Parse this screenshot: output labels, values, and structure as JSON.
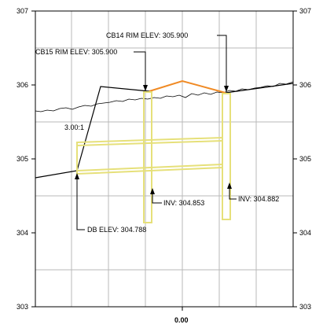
{
  "profile": {
    "y_axis_left": [
      "307",
      "306",
      "305",
      "304",
      "303"
    ],
    "y_axis_right": [
      "307",
      "306",
      "305",
      "304",
      "303"
    ],
    "x_station": "0.00",
    "labels": {
      "cb14_rim": "CB14 RIM ELEV: 305.900",
      "cb15_rim": "CB15 RIM ELEV: 305.900",
      "slope": "3.00:1",
      "inv_left": "INV: 304.853",
      "inv_right": "INV: 304.882",
      "db_elev": "DB ELEV: 304.788"
    },
    "colors": {
      "structure": "#e6e07a",
      "pipe_top": "#f08a24",
      "grid": "#b4b4b4",
      "line": "#000000"
    }
  }
}
